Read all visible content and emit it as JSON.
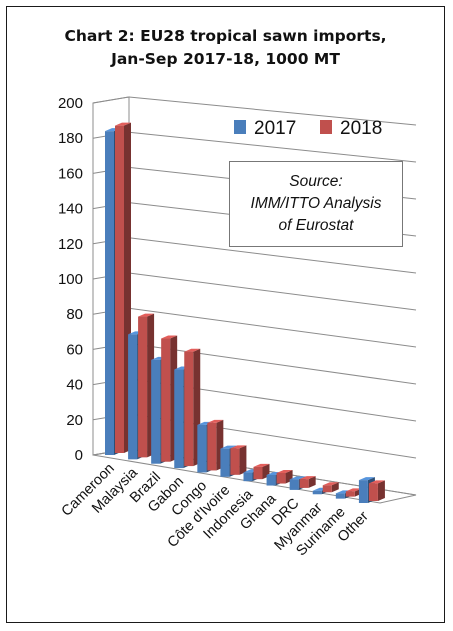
{
  "chart_data": {
    "type": "bar",
    "title": "Chart 2: EU28 tropical sawn imports,",
    "subtitle": "Jan-Sep 2017-18, 1000 MT",
    "categories": [
      "Cameroon",
      "Malaysia",
      "Brazil",
      "Gabon",
      "Congo",
      "Côte d'Ivoire",
      "Indonesia",
      "Ghana",
      "DRC",
      "Myanmar",
      "Suriname",
      "Other"
    ],
    "series": [
      {
        "name": "2017",
        "color": "#4a7ebb",
        "values": [
          184,
          71,
          59,
          56,
          27,
          16,
          5,
          6,
          6,
          2,
          3,
          13
        ]
      },
      {
        "name": "2018",
        "color": "#c0504d",
        "values": [
          186,
          80,
          70,
          65,
          27,
          15,
          7,
          6,
          5,
          4,
          3,
          10
        ]
      }
    ],
    "ylim": [
      0,
      200
    ],
    "yticks": [
      "0",
      "20",
      "40",
      "60",
      "80",
      "100",
      "120",
      "140",
      "160",
      "180",
      "200"
    ],
    "grid": true,
    "legend_position": "top-right",
    "annotation": {
      "lines": [
        "Source:",
        "IMM/ITTO Analysis",
        "of Eurostat"
      ]
    }
  }
}
